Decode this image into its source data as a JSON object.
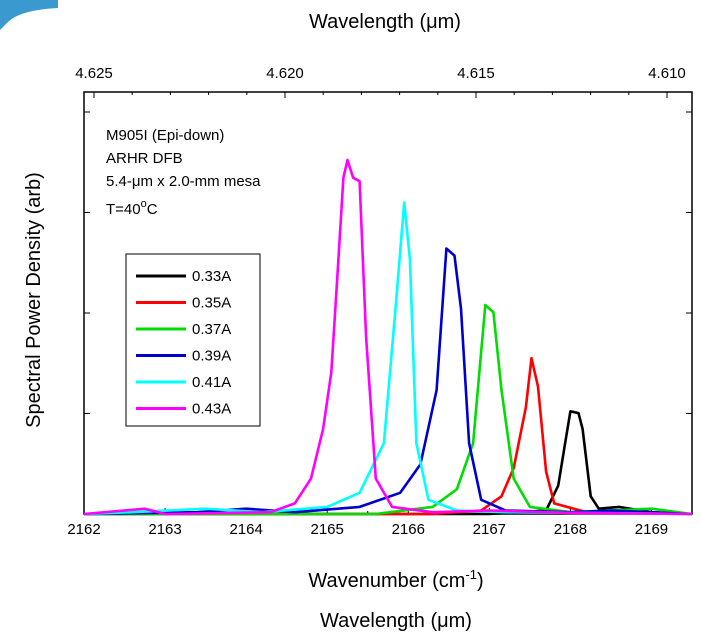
{
  "chart_data": {
    "type": "line",
    "top_axis_title": "Wavelength (μm)",
    "bottom_axis_title_base": "Wavenumber (cm",
    "bottom_axis_title_sup": "-1",
    "bottom_axis_title_end": ")",
    "bottom_extra_title": "Wavelength (μm)",
    "ylabel": "Spectral Power Density (arb)",
    "xlim": [
      2162,
      2169.5
    ],
    "ylim": [
      0,
      1
    ],
    "x_ticks": [
      "2162",
      "2163",
      "2164",
      "2165",
      "2166",
      "2167",
      "2168",
      "2169"
    ],
    "top_ticks": [
      "4.625",
      "4.620",
      "4.615",
      "4.610"
    ],
    "annotations": {
      "line1": "M905I (Epi-down)",
      "line2": "ARHR DFB",
      "line3": "5.4-μm x 2.0-mm mesa",
      "line4_base": "T=40",
      "line4_sup": "o",
      "line4_end": "C"
    },
    "legend_position": "left-middle",
    "grid": false,
    "series": [
      {
        "name": "0.33A",
        "color": "#000000",
        "points": [
          [
            2162,
            0.0
          ],
          [
            2167.0,
            0.0
          ],
          [
            2167.7,
            0.01
          ],
          [
            2167.85,
            0.08
          ],
          [
            2167.95,
            0.22
          ],
          [
            2168.0,
            0.29
          ],
          [
            2168.1,
            0.285
          ],
          [
            2168.15,
            0.24
          ],
          [
            2168.25,
            0.05
          ],
          [
            2168.35,
            0.015
          ],
          [
            2168.6,
            0.02
          ],
          [
            2169,
            0.005
          ],
          [
            2169.5,
            0.0
          ]
        ]
      },
      {
        "name": "0.35A",
        "color": "#ff0000",
        "points": [
          [
            2162,
            0.0
          ],
          [
            2166.3,
            0.0
          ],
          [
            2166.9,
            0.01
          ],
          [
            2167.15,
            0.05
          ],
          [
            2167.3,
            0.13
          ],
          [
            2167.45,
            0.3
          ],
          [
            2167.52,
            0.44
          ],
          [
            2167.6,
            0.36
          ],
          [
            2167.7,
            0.12
          ],
          [
            2167.8,
            0.03
          ],
          [
            2168.2,
            0.005
          ],
          [
            2169.5,
            0.0
          ]
        ]
      },
      {
        "name": "0.37A",
        "color": "#00dd00",
        "points": [
          [
            2162,
            0.0
          ],
          [
            2165.6,
            0.0
          ],
          [
            2166.3,
            0.02
          ],
          [
            2166.6,
            0.07
          ],
          [
            2166.8,
            0.2
          ],
          [
            2166.95,
            0.59
          ],
          [
            2167.05,
            0.57
          ],
          [
            2167.15,
            0.35
          ],
          [
            2167.3,
            0.1
          ],
          [
            2167.5,
            0.02
          ],
          [
            2168.0,
            0.005
          ],
          [
            2169.0,
            0.015
          ],
          [
            2169.5,
            0.0
          ]
        ]
      },
      {
        "name": "0.39A",
        "color": "#0000cc",
        "points": [
          [
            2162,
            0.0
          ],
          [
            2163.4,
            0.005
          ],
          [
            2164.0,
            0.015
          ],
          [
            2164.6,
            0.005
          ],
          [
            2165.4,
            0.02
          ],
          [
            2165.9,
            0.06
          ],
          [
            2166.15,
            0.14
          ],
          [
            2166.35,
            0.35
          ],
          [
            2166.47,
            0.75
          ],
          [
            2166.57,
            0.73
          ],
          [
            2166.65,
            0.58
          ],
          [
            2166.75,
            0.2
          ],
          [
            2166.9,
            0.04
          ],
          [
            2167.2,
            0.01
          ],
          [
            2168.0,
            0.005
          ],
          [
            2168.5,
            0.01
          ],
          [
            2169.5,
            0.0
          ]
        ]
      },
      {
        "name": "0.41A",
        "color": "#00ffff",
        "points": [
          [
            2162,
            0.0
          ],
          [
            2162.6,
            0.005
          ],
          [
            2163.5,
            0.015
          ],
          [
            2164.2,
            0.005
          ],
          [
            2165.0,
            0.02
          ],
          [
            2165.4,
            0.06
          ],
          [
            2165.7,
            0.2
          ],
          [
            2165.85,
            0.6
          ],
          [
            2165.95,
            0.88
          ],
          [
            2166.02,
            0.72
          ],
          [
            2166.1,
            0.2
          ],
          [
            2166.25,
            0.04
          ],
          [
            2166.6,
            0.01
          ],
          [
            2167.2,
            0.005
          ],
          [
            2169.5,
            0.0
          ]
        ]
      },
      {
        "name": "0.43A",
        "color": "#ff00ff",
        "points": [
          [
            2162,
            0.0
          ],
          [
            2162.75,
            0.015
          ],
          [
            2163.0,
            0.0
          ],
          [
            2164.3,
            0.005
          ],
          [
            2164.6,
            0.03
          ],
          [
            2164.8,
            0.1
          ],
          [
            2164.95,
            0.24
          ],
          [
            2165.05,
            0.4
          ],
          [
            2165.12,
            0.65
          ],
          [
            2165.2,
            0.95
          ],
          [
            2165.25,
            1.0
          ],
          [
            2165.32,
            0.95
          ],
          [
            2165.4,
            0.94
          ],
          [
            2165.48,
            0.5
          ],
          [
            2165.6,
            0.1
          ],
          [
            2165.8,
            0.02
          ],
          [
            2166.3,
            0.005
          ],
          [
            2167.0,
            0.01
          ],
          [
            2168.0,
            0.003
          ],
          [
            2169.5,
            0.0
          ]
        ]
      }
    ]
  }
}
